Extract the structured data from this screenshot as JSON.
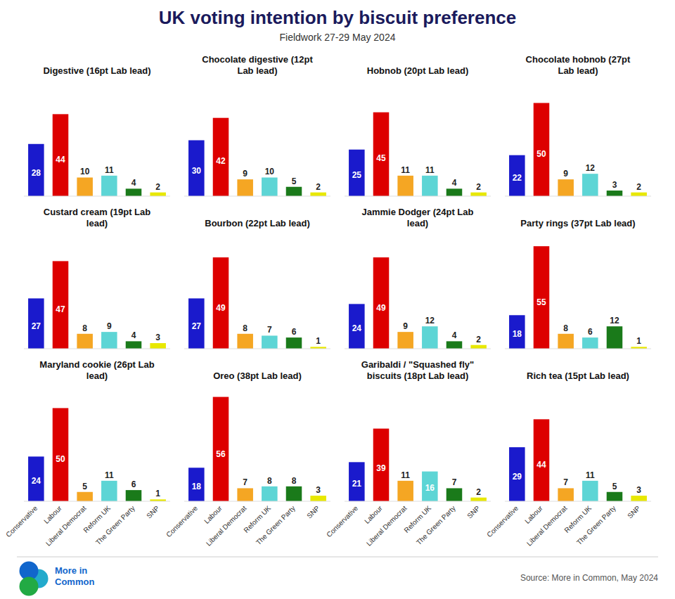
{
  "title": "UK voting intention by biscuit preference",
  "subtitle": "Fieldwork 27-29 May 2024",
  "annotations": [
    "Source: More in Common, May 2024",
    "More in\nCommon"
  ],
  "chart_data": [
    {
      "type": "bar",
      "title": "Digestive (16pt Lab lead)",
      "categories": [
        "Conservative",
        "Labour",
        "Liberal Democrat",
        "Reform UK",
        "The Green Party",
        "SNP"
      ],
      "values": [
        28,
        44,
        10,
        11,
        4,
        2
      ],
      "colors": [
        "#1a1acc",
        "#dd0000",
        "#f5a623",
        "#5dd5d5",
        "#1a7a1a",
        "#e8e800"
      ],
      "ylim": [
        0,
        63
      ],
      "tick_labels": false,
      "data_labels": true,
      "grid": false
    },
    {
      "type": "bar",
      "title": "Chocolate digestive (12pt\nLab lead)",
      "categories": [
        "Conservative",
        "Labour",
        "Liberal Democrat",
        "Reform UK",
        "The Green Party",
        "SNP"
      ],
      "values": [
        30,
        42,
        9,
        10,
        5,
        2
      ],
      "colors": [
        "#1a1acc",
        "#dd0000",
        "#f5a623",
        "#5dd5d5",
        "#1a7a1a",
        "#e8e800"
      ],
      "ylim": [
        0,
        63
      ],
      "tick_labels": false,
      "data_labels": true,
      "grid": false
    },
    {
      "type": "bar",
      "title": "Hobnob (20pt Lab lead)",
      "categories": [
        "Conservative",
        "Labour",
        "Liberal Democrat",
        "Reform UK",
        "The Green Party",
        "SNP"
      ],
      "values": [
        25,
        45,
        11,
        11,
        4,
        2
      ],
      "colors": [
        "#1a1acc",
        "#dd0000",
        "#f5a623",
        "#5dd5d5",
        "#1a7a1a",
        "#e8e800"
      ],
      "ylim": [
        0,
        63
      ],
      "tick_labels": false,
      "data_labels": true,
      "grid": false
    },
    {
      "type": "bar",
      "title": "Chocolate hobnob (27pt\nLab lead)",
      "categories": [
        "Conservative",
        "Labour",
        "Liberal Democrat",
        "Reform UK",
        "The Green Party",
        "SNP"
      ],
      "values": [
        22,
        50,
        9,
        12,
        3,
        2
      ],
      "colors": [
        "#1a1acc",
        "#dd0000",
        "#f5a623",
        "#5dd5d5",
        "#1a7a1a",
        "#e8e800"
      ],
      "ylim": [
        0,
        63
      ],
      "tick_labels": false,
      "data_labels": true,
      "grid": false
    },
    {
      "type": "bar",
      "title": "Custard cream (19pt Lab\nlead)",
      "categories": [
        "Conservative",
        "Labour",
        "Liberal Democrat",
        "Reform UK",
        "The Green Party",
        "SNP"
      ],
      "values": [
        27,
        47,
        8,
        9,
        4,
        3
      ],
      "colors": [
        "#1a1acc",
        "#dd0000",
        "#f5a623",
        "#5dd5d5",
        "#1a7a1a",
        "#e8e800"
      ],
      "ylim": [
        0,
        63
      ],
      "tick_labels": false,
      "data_labels": true,
      "grid": false
    },
    {
      "type": "bar",
      "title": "Bourbon (22pt Lab lead)",
      "categories": [
        "Conservative",
        "Labour",
        "Liberal Democrat",
        "Reform UK",
        "The Green Party",
        "SNP"
      ],
      "values": [
        27,
        49,
        8,
        7,
        6,
        1
      ],
      "colors": [
        "#1a1acc",
        "#dd0000",
        "#f5a623",
        "#5dd5d5",
        "#1a7a1a",
        "#e8e800"
      ],
      "ylim": [
        0,
        63
      ],
      "tick_labels": false,
      "data_labels": true,
      "grid": false
    },
    {
      "type": "bar",
      "title": "Jammie Dodger (24pt Lab\nlead)",
      "categories": [
        "Conservative",
        "Labour",
        "Liberal Democrat",
        "Reform UK",
        "The Green Party",
        "SNP"
      ],
      "values": [
        24,
        49,
        9,
        12,
        4,
        2
      ],
      "colors": [
        "#1a1acc",
        "#dd0000",
        "#f5a623",
        "#5dd5d5",
        "#1a7a1a",
        "#e8e800"
      ],
      "ylim": [
        0,
        63
      ],
      "tick_labels": false,
      "data_labels": true,
      "grid": false
    },
    {
      "type": "bar",
      "title": "Party rings (37pt Lab lead)",
      "categories": [
        "Conservative",
        "Labour",
        "Liberal Democrat",
        "Reform UK",
        "The Green Party",
        "SNP"
      ],
      "values": [
        18,
        55,
        8,
        6,
        12,
        1
      ],
      "colors": [
        "#1a1acc",
        "#dd0000",
        "#f5a623",
        "#5dd5d5",
        "#1a7a1a",
        "#e8e800"
      ],
      "ylim": [
        0,
        63
      ],
      "tick_labels": false,
      "data_labels": true,
      "grid": false
    },
    {
      "type": "bar",
      "title": "Maryland cookie (26pt Lab\nlead)",
      "categories": [
        "Conservative",
        "Labour",
        "Liberal Democrat",
        "Reform UK",
        "The Green Party",
        "SNP"
      ],
      "values": [
        24,
        50,
        5,
        11,
        6,
        1
      ],
      "colors": [
        "#1a1acc",
        "#dd0000",
        "#f5a623",
        "#5dd5d5",
        "#1a7a1a",
        "#e8e800"
      ],
      "ylim": [
        0,
        63
      ],
      "tick_labels": "x",
      "data_labels": true,
      "grid": false
    },
    {
      "type": "bar",
      "title": "Oreo (38pt Lab lead)",
      "categories": [
        "Conservative",
        "Labour",
        "Liberal Democrat",
        "Reform UK",
        "The Green Party",
        "SNP"
      ],
      "values": [
        18,
        56,
        7,
        8,
        8,
        3
      ],
      "colors": [
        "#1a1acc",
        "#dd0000",
        "#f5a623",
        "#5dd5d5",
        "#1a7a1a",
        "#e8e800"
      ],
      "ylim": [
        0,
        63
      ],
      "tick_labels": "x",
      "data_labels": true,
      "grid": false
    },
    {
      "type": "bar",
      "title": "Garibaldi / \"Squashed fly\"\nbiscuits (18pt Lab lead)",
      "categories": [
        "Conservative",
        "Labour",
        "Liberal Democrat",
        "Reform UK",
        "The Green Party",
        "SNP"
      ],
      "values": [
        21,
        39,
        11,
        16,
        7,
        2
      ],
      "colors": [
        "#1a1acc",
        "#dd0000",
        "#f5a623",
        "#5dd5d5",
        "#1a7a1a",
        "#e8e800"
      ],
      "ylim": [
        0,
        63
      ],
      "tick_labels": "x",
      "data_labels": true,
      "grid": false
    },
    {
      "type": "bar",
      "title": "Rich tea (15pt Lab lead)",
      "categories": [
        "Conservative",
        "Labour",
        "Liberal Democrat",
        "Reform UK",
        "The Green Party",
        "SNP"
      ],
      "values": [
        29,
        44,
        7,
        11,
        5,
        3
      ],
      "colors": [
        "#1a1acc",
        "#dd0000",
        "#f5a623",
        "#5dd5d5",
        "#1a7a1a",
        "#e8e800"
      ],
      "ylim": [
        0,
        63
      ],
      "tick_labels": "x",
      "data_labels": true,
      "grid": false
    }
  ]
}
